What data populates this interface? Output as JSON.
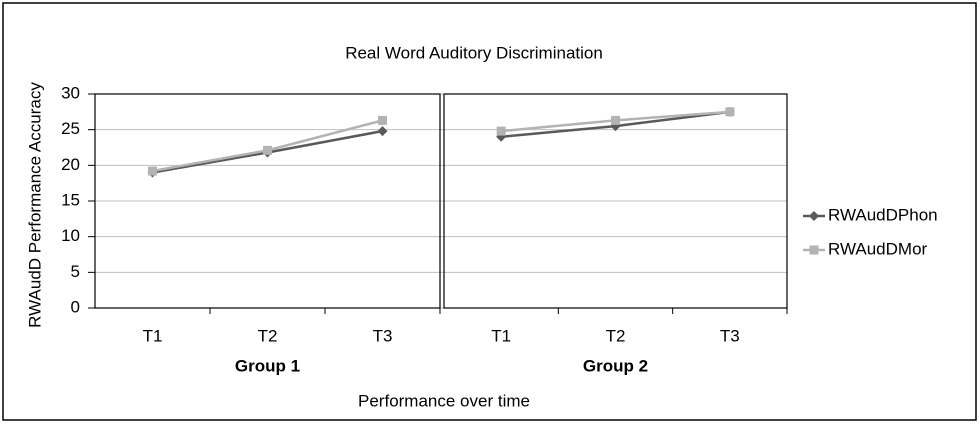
{
  "chart_data": {
    "type": "line",
    "title": "Real Word Auditory Discrimination",
    "y_label": "RWAudD Performance Accuracy",
    "x_label": "Performance over time",
    "panels": [
      "Group 1",
      "Group 2"
    ],
    "categories": [
      "T1",
      "T2",
      "T3"
    ],
    "series": [
      {
        "name": "RWAudDPhon",
        "color": "#595959",
        "marker": "diamond",
        "values": [
          [
            19,
            21.8,
            24.8
          ],
          [
            24,
            25.5,
            27.5
          ]
        ]
      },
      {
        "name": "RWAudDMor",
        "color": "#b3b3b3",
        "marker": "square",
        "values": [
          [
            19.2,
            22.1,
            26.3
          ],
          [
            24.8,
            26.3,
            27.5
          ]
        ]
      }
    ],
    "ylim": [
      0,
      30
    ],
    "yticks": [
      0,
      5,
      10,
      15,
      20,
      25,
      30
    ],
    "grid": true,
    "legend": "right"
  }
}
